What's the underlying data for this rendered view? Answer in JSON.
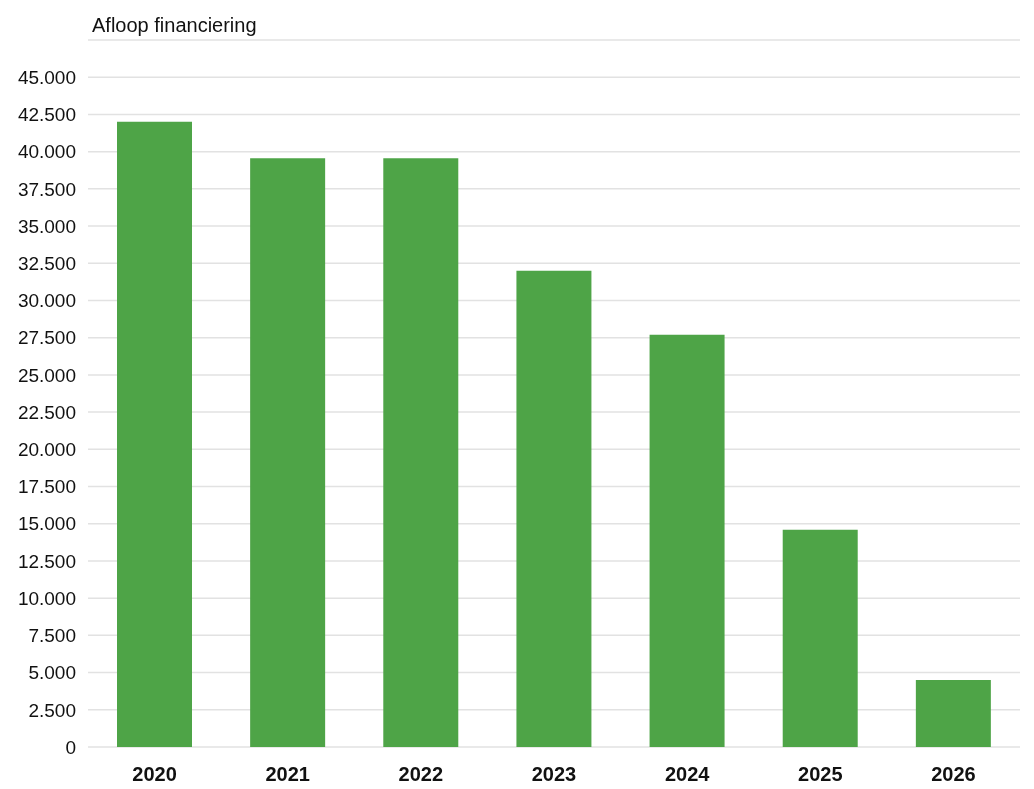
{
  "chart_data": {
    "type": "bar",
    "title": "Afloop financiering",
    "categories": [
      "2020",
      "2021",
      "2022",
      "2023",
      "2024",
      "2025",
      "2026"
    ],
    "values": [
      42000,
      39550,
      39550,
      32000,
      27700,
      14600,
      4500
    ],
    "color": "#4ea447",
    "ylim": [
      0,
      47500
    ],
    "yticks": [
      0,
      {
        "value": 2500,
        "label": "2.500"
      },
      {
        "value": 5000,
        "label": "5.000"
      },
      {
        "value": 7500,
        "label": "7.500"
      },
      {
        "value": 10000,
        "label": "10.000"
      },
      {
        "value": 12500,
        "label": "12.500"
      },
      {
        "value": 15000,
        "label": "15.000"
      },
      {
        "value": 17500,
        "label": "17.500"
      },
      {
        "value": 20000,
        "label": "20.000"
      },
      {
        "value": 22500,
        "label": "22.500"
      },
      {
        "value": 25000,
        "label": "25.000"
      },
      {
        "value": 27500,
        "label": "27.500"
      },
      {
        "value": 30000,
        "label": "30.000"
      },
      {
        "value": 32500,
        "label": "32.500"
      },
      {
        "value": 35000,
        "label": "35.000"
      },
      {
        "value": 37500,
        "label": "37.500"
      },
      {
        "value": 40000,
        "label": "40.000"
      },
      {
        "value": 42500,
        "label": "42.500"
      },
      {
        "value": 45000,
        "label": "45.000"
      },
      {
        "value": 47500,
        "label": null
      }
    ],
    "grid": "y"
  }
}
